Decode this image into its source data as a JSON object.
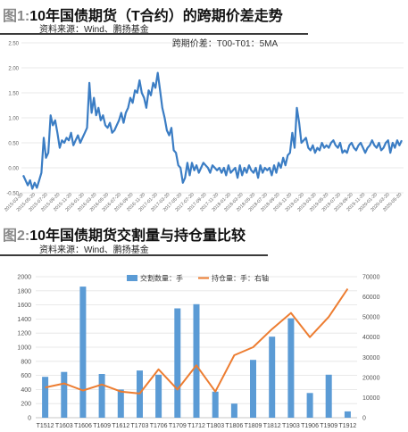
{
  "figure1": {
    "label": "图1:",
    "title": "10年国债期货（T合约）的跨期价差走势",
    "source": "资料来源：Wind、鹏扬基金",
    "chart_data": {
      "type": "line",
      "title": "",
      "xlabel": "",
      "ylabel": "",
      "ylim": [
        -0.5,
        2.5
      ],
      "yticks": [
        "2.50",
        "2.00",
        "1.50",
        "1.00",
        "0.50",
        "0.00",
        "-0.50"
      ],
      "xticks": [
        "2015-03-20",
        "2015-05-20",
        "2015-07-20",
        "2015-09-20",
        "2015-11-20",
        "2016-01-20",
        "2016-03-20",
        "2016-05-20",
        "2016-07-20",
        "2016-09-20",
        "2016-11-20",
        "2017-01-20",
        "2017-03-20",
        "2017-05-20",
        "2017-07-20",
        "2017-09-20",
        "2017-11-20",
        "2018-01-20",
        "2018-03-20",
        "2018-05-20",
        "2018-07-20",
        "2018-09-20",
        "2018-11-20",
        "2019-01-20",
        "2019-03-20",
        "2019-05-20",
        "2019-07-20",
        "2019-09-20",
        "2019-11-20",
        "2020-01-20",
        "2020-03-20",
        "2020-05-20"
      ],
      "series": [
        {
          "name": "跨期价差：T00-T01：5MA",
          "color": "#3b7dc4",
          "values": [
            -0.15,
            -0.25,
            -0.35,
            -0.25,
            -0.42,
            -0.3,
            -0.4,
            -0.25,
            -0.1,
            0.6,
            0.2,
            0.3,
            1.05,
            0.85,
            0.95,
            0.7,
            0.4,
            0.55,
            0.5,
            0.6,
            0.55,
            0.7,
            0.45,
            0.55,
            0.65,
            0.5,
            0.6,
            0.7,
            0.8,
            1.7,
            1.1,
            1.4,
            1.05,
            1.2,
            0.95,
            1.05,
            0.85,
            0.8,
            0.9,
            0.7,
            0.75,
            0.85,
            0.95,
            1.1,
            0.9,
            1.1,
            1.2,
            1.4,
            1.3,
            1.55,
            1.5,
            1.75,
            1.5,
            1.4,
            1.2,
            1.55,
            1.45,
            1.7,
            1.6,
            1.9,
            1.55,
            1.2,
            1.0,
            0.75,
            0.65,
            0.8,
            0.35,
            0.3,
            0.05,
            0.0,
            -0.3,
            -0.2,
            0.1,
            -0.15,
            0.1,
            -0.05,
            0.05,
            -0.1,
            0.0,
            0.1,
            0.05,
            0.0,
            -0.1,
            0.05,
            0.0,
            -0.05,
            0.0,
            -0.1,
            0.0,
            -0.15,
            0.05,
            -0.1,
            -0.05,
            0.0,
            -0.2,
            0.05,
            -0.15,
            0.0,
            -0.1,
            0.05,
            -0.05,
            -0.1,
            0.0,
            -0.2,
            0.05,
            -0.1,
            0.0,
            -0.05,
            0.0,
            -0.15,
            0.05,
            -0.1,
            0.1,
            0.0,
            0.2,
            0.05,
            0.25,
            0.3,
            0.7,
            0.4,
            1.2,
            0.9,
            0.5,
            0.55,
            0.6,
            0.4,
            0.35,
            0.45,
            0.3,
            0.4,
            0.35,
            0.5,
            0.4,
            0.45,
            0.4,
            0.5,
            0.55,
            0.45,
            0.4,
            0.5,
            0.3,
            0.35,
            0.3,
            0.45,
            0.5,
            0.4,
            0.35,
            0.45,
            0.5,
            0.4,
            0.3,
            0.4,
            0.45,
            0.55,
            0.45,
            0.4,
            0.5,
            0.35,
            0.4,
            0.5,
            0.55,
            0.3,
            0.5,
            0.4,
            0.55,
            0.45,
            0.55
          ]
        }
      ]
    }
  },
  "figure2": {
    "label": "图2:",
    "title": "10年国债期货交割量与持仓量比较",
    "source": "资料来源：Wind、鹏扬基金",
    "chart_data": {
      "type": "bar",
      "title": "",
      "xlabel": "",
      "ylabel": "",
      "categories": [
        "T1512",
        "T1603",
        "T1606",
        "T1609",
        "T1612",
        "T1703",
        "T1706",
        "T1709",
        "T1712",
        "T1803",
        "T1806",
        "T1809",
        "T1812",
        "T1903",
        "T1906",
        "T1909",
        "T1912"
      ],
      "ylim": [
        0,
        2000
      ],
      "y2lim": [
        0,
        70000
      ],
      "yticks": [
        0,
        200,
        400,
        600,
        800,
        1000,
        1200,
        1400,
        1600,
        1800,
        2000
      ],
      "y2ticks": [
        0,
        10000,
        20000,
        30000,
        40000,
        50000,
        60000,
        70000
      ],
      "legend_position": "top",
      "series": [
        {
          "name": "交割数量：手",
          "type": "bar",
          "axis": "left",
          "color": "#5b9bd5",
          "values": [
            580,
            650,
            1860,
            620,
            400,
            670,
            610,
            1550,
            1610,
            370,
            200,
            820,
            1150,
            1410,
            350,
            610,
            90
          ]
        },
        {
          "name": "持仓量：手：右轴",
          "type": "line",
          "axis": "right",
          "color": "#ed7d31",
          "values": [
            15000,
            17000,
            13500,
            16500,
            13000,
            12000,
            24000,
            14000,
            26000,
            13000,
            31000,
            35000,
            44000,
            52000,
            40000,
            50000,
            64000
          ]
        }
      ]
    }
  }
}
